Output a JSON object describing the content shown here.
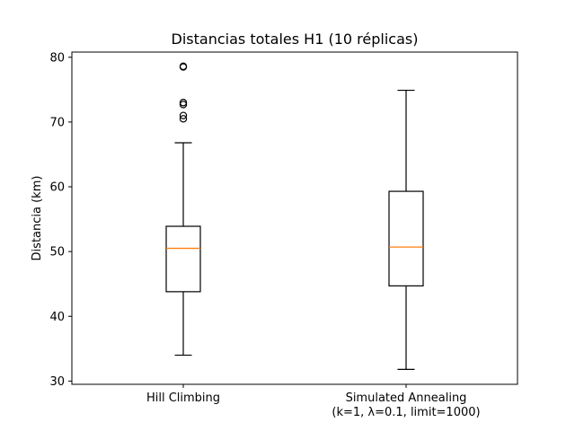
{
  "chart_data": {
    "type": "box",
    "title": "Distancias totales H1 (10 réplicas)",
    "xlabel": "",
    "ylabel": "Distancia (km)",
    "ylim": [
      29.5,
      80.8
    ],
    "yticks": [
      30,
      40,
      50,
      60,
      70,
      80
    ],
    "grid": false,
    "categories": [
      [
        "Hill Climbing"
      ],
      [
        "Simulated Annealing",
        "(k=1, λ=0.1, limit=1000)"
      ]
    ],
    "series": [
      {
        "whisker_low": 34.0,
        "q1": 43.8,
        "median": 50.5,
        "q3": 53.9,
        "whisker_high": 66.8,
        "outliers": [
          70.5,
          71.0,
          72.7,
          73.0,
          78.5,
          78.6
        ]
      },
      {
        "whisker_low": 31.8,
        "q1": 44.7,
        "median": 50.7,
        "q3": 59.3,
        "whisker_high": 74.9,
        "outliers": []
      }
    ],
    "colors": {
      "box": "#000000",
      "median": "#ff7f0e",
      "outlier": "#000000"
    }
  }
}
